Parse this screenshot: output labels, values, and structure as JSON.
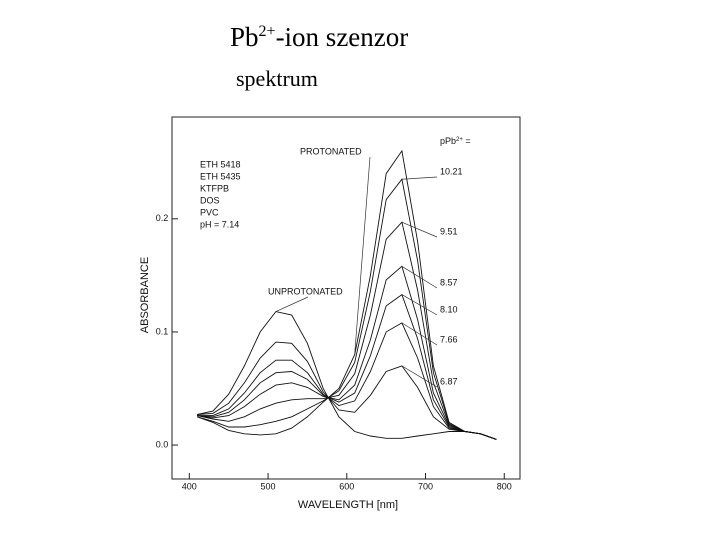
{
  "chart_data": {
    "type": "line",
    "title": [
      "Pb",
      "2+",
      "-ion szenzor"
    ],
    "subtitle": "spektrum",
    "x_label": "WAVELENGTH  [nm]",
    "y_label": "ABSORBANCE",
    "series_label": [
      "pPb",
      "2+",
      " ="
    ],
    "conditions": [
      "ETH 5418",
      "ETH 5435",
      "KTFPB",
      "DOS",
      "PVC",
      "pH = 7.14"
    ],
    "x": [
      410,
      430,
      450,
      470,
      490,
      510,
      530,
      550,
      570,
      590,
      610,
      630,
      650,
      670,
      690,
      710,
      730,
      750,
      770,
      790
    ],
    "series": [
      {
        "name": "PROTONATED",
        "color": "#111111",
        "values": [
          0.025,
          0.02,
          0.013,
          0.01,
          0.009,
          0.01,
          0.015,
          0.025,
          0.038,
          0.05,
          0.08,
          0.15,
          0.24,
          0.26,
          0.18,
          0.07,
          0.02,
          0.012,
          0.01,
          0.005
        ]
      },
      {
        "name": "10.21",
        "color": "#111111",
        "values": [
          0.025,
          0.021,
          0.016,
          0.016,
          0.018,
          0.021,
          0.025,
          0.032,
          0.039,
          0.048,
          0.073,
          0.136,
          0.217,
          0.235,
          0.163,
          0.064,
          0.019,
          0.012,
          0.01,
          0.005
        ]
      },
      {
        "name": "9.51",
        "color": "#111111",
        "values": [
          0.026,
          0.023,
          0.021,
          0.025,
          0.032,
          0.037,
          0.04,
          0.041,
          0.041,
          0.044,
          0.063,
          0.115,
          0.182,
          0.197,
          0.137,
          0.055,
          0.018,
          0.012,
          0.01,
          0.005
        ]
      },
      {
        "name": "8.57",
        "color": "#111111",
        "values": [
          0.026,
          0.024,
          0.026,
          0.034,
          0.045,
          0.053,
          0.055,
          0.051,
          0.043,
          0.04,
          0.053,
          0.093,
          0.146,
          0.158,
          0.111,
          0.046,
          0.017,
          0.012,
          0.01,
          0.005
        ]
      },
      {
        "name": "8.10",
        "color": "#111111",
        "values": [
          0.026,
          0.025,
          0.029,
          0.04,
          0.055,
          0.064,
          0.065,
          0.058,
          0.044,
          0.038,
          0.046,
          0.079,
          0.123,
          0.133,
          0.094,
          0.04,
          0.016,
          0.012,
          0.01,
          0.005
        ]
      },
      {
        "name": "7.66",
        "color": "#111111",
        "values": [
          0.026,
          0.026,
          0.032,
          0.046,
          0.064,
          0.075,
          0.075,
          0.064,
          0.045,
          0.035,
          0.039,
          0.065,
          0.1,
          0.108,
          0.077,
          0.034,
          0.015,
          0.012,
          0.01,
          0.005
        ]
      },
      {
        "name": "6.87",
        "color": "#111111",
        "values": [
          0.027,
          0.028,
          0.037,
          0.055,
          0.077,
          0.091,
          0.09,
          0.074,
          0.047,
          0.031,
          0.029,
          0.044,
          0.065,
          0.07,
          0.051,
          0.025,
          0.014,
          0.012,
          0.01,
          0.005
        ]
      },
      {
        "name": "UNPROTONATED",
        "color": "#111111",
        "values": [
          0.027,
          0.03,
          0.045,
          0.07,
          0.1,
          0.118,
          0.115,
          0.09,
          0.05,
          0.025,
          0.012,
          0.008,
          0.006,
          0.006,
          0.008,
          0.01,
          0.012,
          0.012,
          0.01,
          0.005
        ]
      }
    ],
    "xlim": [
      378,
      820
    ],
    "ylim": [
      -0.03,
      0.29
    ],
    "xticks": [
      400,
      500,
      600,
      700,
      800
    ],
    "yticks": [
      {
        "value": 0,
        "label": "0.0"
      },
      0.1,
      0.2
    ],
    "grid": false
  }
}
